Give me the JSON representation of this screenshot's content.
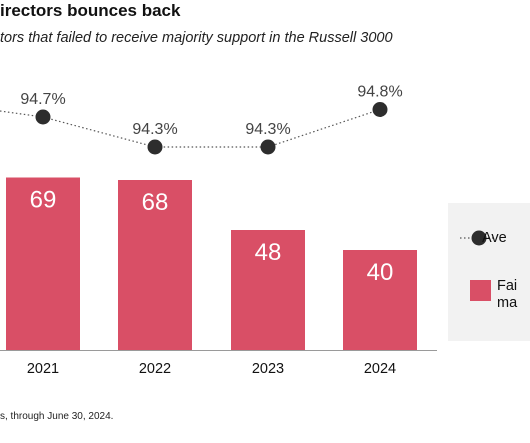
{
  "chart_data": {
    "type": "bar",
    "title": "irectors bounces back",
    "subtitle": "tors that failed to receive majority support in the Russell 3000",
    "categories": [
      "2021",
      "2022",
      "2023",
      "2024"
    ],
    "series": [
      {
        "name": "Fai ma",
        "type": "bar",
        "color": "#d94f66",
        "values": [
          69,
          68,
          48,
          40
        ],
        "labels": [
          "69",
          "68",
          "48",
          "40"
        ]
      },
      {
        "name": "Ave",
        "type": "line",
        "color": "#2d2d2d",
        "values": [
          94.7,
          94.3,
          94.3,
          94.8
        ],
        "labels": [
          "94.7%",
          "94.3%",
          "94.3%",
          "94.8%"
        ]
      }
    ],
    "legend_position": "right",
    "grid": false,
    "footnote": "s, through June 30, 2024."
  },
  "legend": {
    "line_label": "Ave",
    "bar_label_line1": "Fai",
    "bar_label_line2": "ma"
  }
}
